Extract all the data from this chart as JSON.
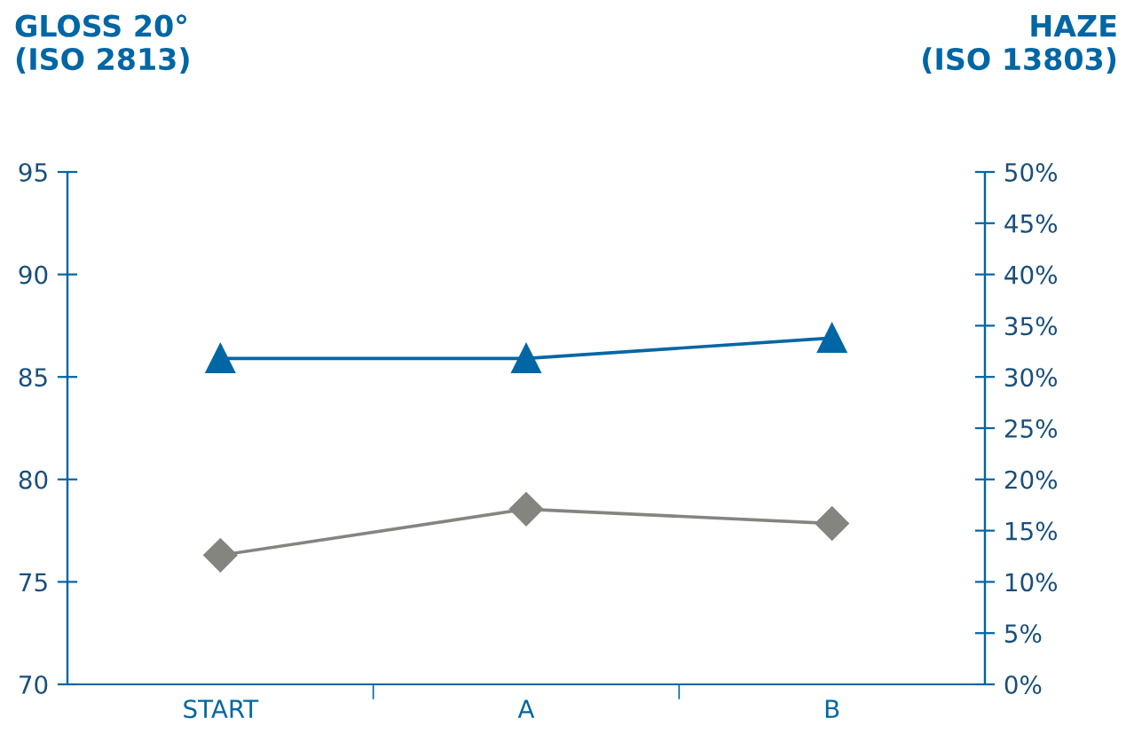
{
  "chart_data": {
    "type": "line",
    "ylabel": "GLOSS 20°\n(ISO 2813)",
    "y2label": "HAZE\n(ISO 13803)",
    "categories": [
      "START",
      "A",
      "B"
    ],
    "series": [
      {
        "color": "#0066a4",
        "values": [
          85.9,
          85.9,
          86.9
        ],
        "marker": "triangle"
      },
      {
        "color": "#858580",
        "values": [
          12.6,
          17.1,
          15.7
        ],
        "marker": "diamond",
        "axis": "y2"
      }
    ],
    "ylim": [
      70,
      95
    ],
    "yticks": [
      70,
      75,
      80,
      85,
      90,
      95
    ],
    "y2lim": [
      0,
      50
    ],
    "y2ticks": [
      {
        "value": 0,
        "label": "0%"
      },
      {
        "value": 5,
        "label": "5%"
      },
      {
        "value": 10,
        "label": "10%"
      },
      {
        "value": 15,
        "label": "15%"
      },
      {
        "value": 20,
        "label": "20%"
      },
      {
        "value": 25,
        "label": "25%"
      },
      {
        "value": 30,
        "label": "30%"
      },
      {
        "value": 35,
        "label": "35%"
      },
      {
        "value": 40,
        "label": "40%"
      },
      {
        "value": 45,
        "label": "45%"
      },
      {
        "value": 50,
        "label": "50%"
      }
    ],
    "grid": false,
    "legend": false,
    "line_style": "solid"
  }
}
